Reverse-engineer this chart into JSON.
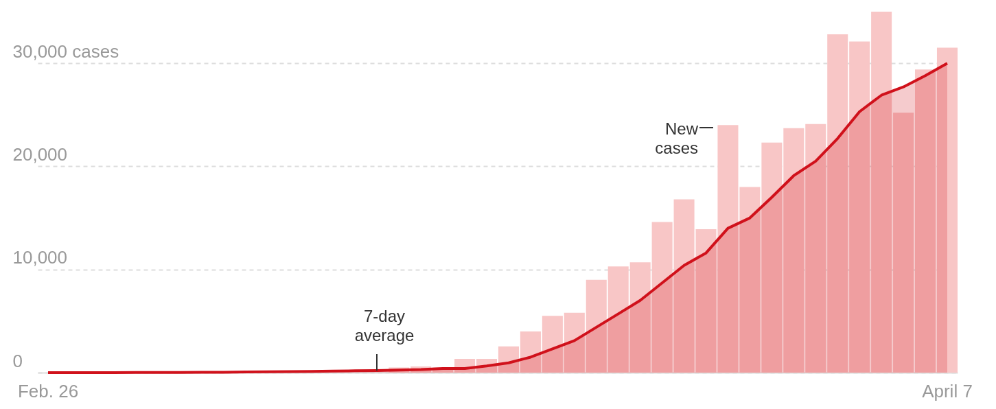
{
  "chart_data": {
    "type": "bar",
    "categories": [
      "Feb. 26",
      null,
      null,
      null,
      null,
      null,
      null,
      null,
      null,
      null,
      null,
      null,
      null,
      null,
      null,
      null,
      null,
      null,
      null,
      null,
      null,
      null,
      null,
      null,
      null,
      null,
      null,
      null,
      null,
      null,
      null,
      null,
      null,
      null,
      null,
      null,
      null,
      null,
      null,
      null,
      null,
      "April 7"
    ],
    "series": [
      {
        "name": "New cases",
        "color": "#f8c6c6",
        "values": [
          null,
          null,
          null,
          null,
          null,
          null,
          null,
          null,
          null,
          null,
          null,
          null,
          null,
          null,
          null,
          null,
          500,
          600,
          500,
          1330,
          1330,
          2550,
          4000,
          5500,
          5800,
          9000,
          10300,
          10700,
          14600,
          16800,
          13900,
          24000,
          18000,
          22300,
          23700,
          24100,
          32800,
          32100,
          35000,
          25200,
          29400,
          31500
        ]
      },
      {
        "type": "area",
        "name": "7-day average",
        "color": "#d0111b",
        "values": [
          0,
          0,
          0,
          0,
          10,
          10,
          20,
          30,
          40,
          60,
          80,
          100,
          120,
          150,
          180,
          200,
          250,
          300,
          400,
          400,
          650,
          950,
          1500,
          2300,
          3100,
          4400,
          5700,
          7000,
          8700,
          10400,
          11600,
          14000,
          15000,
          17000,
          19100,
          20500,
          22700,
          25300,
          26900,
          27700,
          28800,
          30000
        ]
      }
    ],
    "ylim": [
      0,
      35000
    ],
    "yticks": [
      0,
      {
        "value": 10000,
        "label": "10,000"
      },
      {
        "value": 20000,
        "label": "20,000"
      },
      {
        "value": 30000,
        "label": "30,000 cases"
      }
    ],
    "grid": "y"
  }
}
